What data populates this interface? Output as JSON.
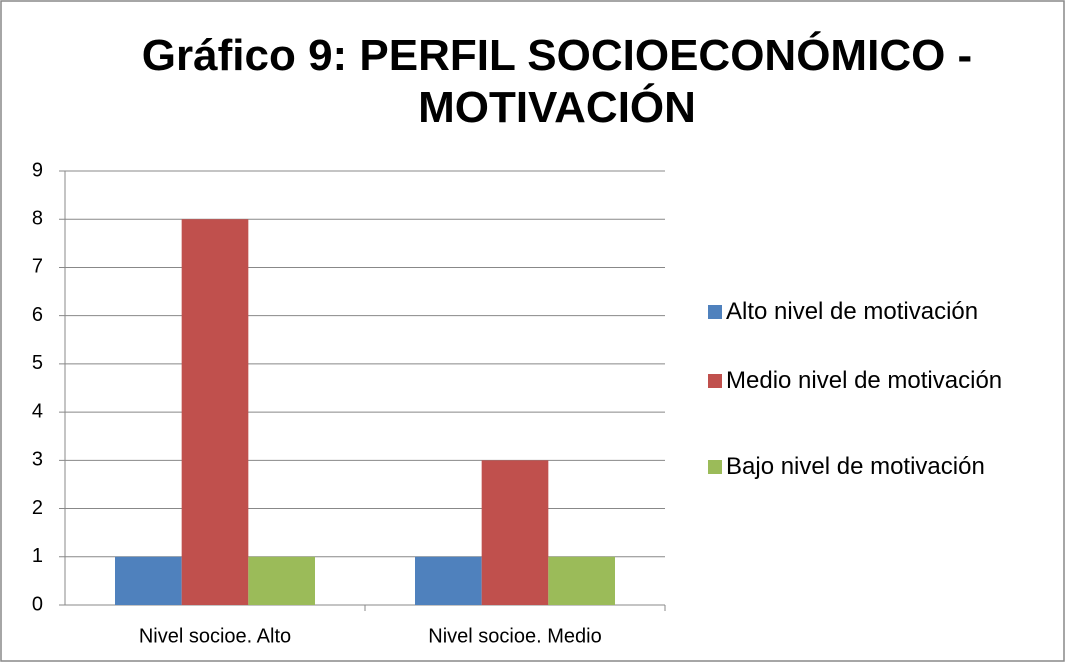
{
  "chart_data": {
    "type": "bar",
    "title": "Gráfico 9: PERFIL SOCIOECONÓMICO - MOTIVACIÓN",
    "categories": [
      "Nivel socioe. Alto",
      "Nivel socioe. Medio"
    ],
    "series": [
      {
        "name": "Alto nivel de motivación",
        "color": "#4f81bd",
        "values": [
          1,
          1
        ]
      },
      {
        "name": "Medio nivel de motivación",
        "color": "#c0504d",
        "values": [
          8,
          3
        ]
      },
      {
        "name": "Bajo nivel de motivación",
        "color": "#9bbb59",
        "values": [
          1,
          1
        ]
      }
    ],
    "ylim": [
      0,
      9
    ],
    "yticks": [
      0,
      1,
      2,
      3,
      4,
      5,
      6,
      7,
      8,
      9
    ],
    "grid": true,
    "legend": "right"
  }
}
